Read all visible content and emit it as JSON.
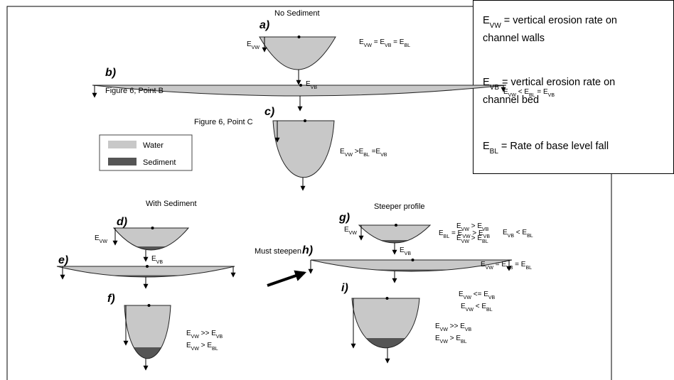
{
  "definitions": [
    [
      [
        "E",
        {
          "sub": "VW"
        },
        " = vertical erosion rate on"
      ],
      [
        "channel walls"
      ]
    ],
    [
      [
        "E",
        {
          "sub": "VB"
        },
        " = vertical erosion rate on"
      ],
      [
        "channel bed"
      ]
    ],
    [
      [
        "E",
        {
          "sub": "BL"
        },
        " = Rate of base level fall"
      ]
    ]
  ],
  "panel_letters": [
    "a)",
    "b)",
    "c)",
    "d)",
    "e)",
    "f)",
    "g)",
    "h)",
    "i)"
  ],
  "headings": {
    "no_sediment": "No Sediment",
    "point_b": "Figure 6, Point B",
    "point_c": "Figure 6, Point C",
    "with_sediment": "With Sediment",
    "steeper": "Steeper profile",
    "must_steepen": "Must steepen"
  },
  "legend": {
    "water": "Water",
    "sediment": "Sediment"
  },
  "arrow_labels": [
    [
      "E",
      {
        "sub": "VW"
      }
    ],
    [
      "E",
      {
        "sub": "VB"
      }
    ],
    [
      "E",
      {
        "sub": "VW"
      }
    ],
    [
      "E",
      {
        "sub": "VB"
      }
    ],
    [
      "E",
      {
        "sub": "VW"
      }
    ],
    [
      "E",
      {
        "sub": "VB"
      }
    ]
  ],
  "equations": [
    [
      "E",
      {
        "sub": "VW"
      },
      " = E",
      {
        "sub": "VB"
      },
      " = E",
      {
        "sub": "BL"
      }
    ],
    [
      "E",
      {
        "sub": "VW"
      },
      " < E",
      {
        "sub": "BL"
      },
      " = E",
      {
        "sub": "VB"
      }
    ],
    [
      "E",
      {
        "sub": "VW"
      },
      " >E",
      {
        "sub": "BL"
      },
      " =E",
      {
        "sub": "VB"
      }
    ],
    [
      "E",
      {
        "sub": "BL"
      },
      " = E",
      {
        "sub": "VW"
      },
      " > E",
      {
        "sub": "VB"
      }
    ],
    [
      "E",
      {
        "sub": "VW"
      },
      " <= E",
      {
        "sub": "VB"
      }
    ],
    [
      "E",
      {
        "sub": "VW"
      },
      " < E",
      {
        "sub": "BL"
      }
    ],
    [
      "E",
      {
        "sub": "VW"
      },
      " >> E",
      {
        "sub": "VB"
      }
    ],
    [
      "E",
      {
        "sub": "VW"
      },
      " > E",
      {
        "sub": "BL"
      }
    ],
    [
      "E",
      {
        "sub": "VW"
      },
      " > E",
      {
        "sub": "VB"
      }
    ],
    [
      "E",
      {
        "sub": "VW"
      },
      " > E",
      {
        "sub": "BL"
      }
    ],
    [
      "E",
      {
        "sub": "VB"
      },
      " < E",
      {
        "sub": "BL"
      }
    ],
    [
      "E",
      {
        "sub": "VW"
      },
      " = E",
      {
        "sub": "VB"
      },
      " = E",
      {
        "sub": "BL"
      }
    ],
    [
      "E",
      {
        "sub": "VW"
      },
      " >> E",
      {
        "sub": "VB"
      }
    ],
    [
      "E",
      {
        "sub": "VW"
      },
      " > E",
      {
        "sub": "BL"
      }
    ]
  ]
}
